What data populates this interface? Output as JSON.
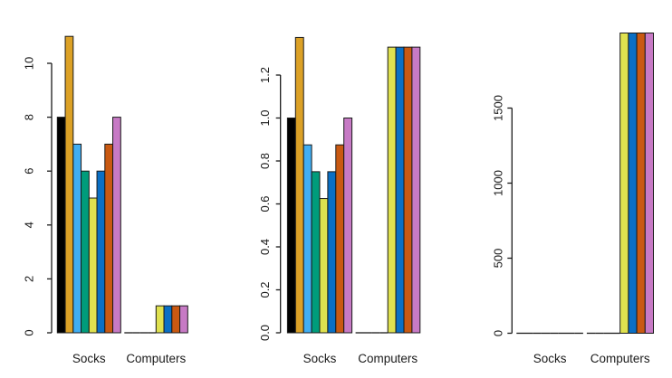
{
  "figure": {
    "background": "#ffffff",
    "categories": [
      "Socks",
      "Computers"
    ],
    "series_colors": [
      "#000000",
      "#DCA126",
      "#41AEF2",
      "#009C7B",
      "#DFE14F",
      "#0A6FC4",
      "#C95912",
      "#C77AC5"
    ]
  },
  "chart_data": [
    {
      "type": "bar",
      "title": "",
      "xlabel": "",
      "ylabel": "",
      "categories": [
        "Socks",
        "Computers"
      ],
      "series": [
        {
          "name": "black",
          "color": "#000000",
          "values": [
            8,
            0
          ]
        },
        {
          "name": "orange",
          "color": "#DCA126",
          "values": [
            11,
            0
          ]
        },
        {
          "name": "sky-blue",
          "color": "#41AEF2",
          "values": [
            7,
            0
          ]
        },
        {
          "name": "bluish-green",
          "color": "#009C7B",
          "values": [
            6,
            0
          ]
        },
        {
          "name": "yellow",
          "color": "#DFE14F",
          "values": [
            5,
            1
          ]
        },
        {
          "name": "blue",
          "color": "#0A6FC4",
          "values": [
            6,
            1
          ]
        },
        {
          "name": "vermillion",
          "color": "#C95912",
          "values": [
            7,
            1
          ]
        },
        {
          "name": "orchid",
          "color": "#C77AC5",
          "values": [
            8,
            1
          ]
        }
      ],
      "yticks": [
        0,
        2,
        4,
        6,
        8,
        10
      ],
      "ytick_labels": [
        "0",
        "2",
        "4",
        "6",
        "8",
        "10"
      ],
      "ylim": [
        0,
        11
      ],
      "grid": false,
      "legend": "none"
    },
    {
      "type": "bar",
      "title": "",
      "xlabel": "",
      "ylabel": "",
      "categories": [
        "Socks",
        "Computers"
      ],
      "series": [
        {
          "name": "black",
          "color": "#000000",
          "values": [
            1.0,
            0
          ]
        },
        {
          "name": "orange",
          "color": "#DCA126",
          "values": [
            1.375,
            0
          ]
        },
        {
          "name": "sky-blue",
          "color": "#41AEF2",
          "values": [
            0.875,
            0
          ]
        },
        {
          "name": "bluish-green",
          "color": "#009C7B",
          "values": [
            0.75,
            0
          ]
        },
        {
          "name": "yellow",
          "color": "#DFE14F",
          "values": [
            0.625,
            1.33
          ]
        },
        {
          "name": "blue",
          "color": "#0A6FC4",
          "values": [
            0.75,
            1.33
          ]
        },
        {
          "name": "vermillion",
          "color": "#C95912",
          "values": [
            0.875,
            1.33
          ]
        },
        {
          "name": "orchid",
          "color": "#C77AC5",
          "values": [
            1.0,
            1.33
          ]
        }
      ],
      "yticks": [
        0,
        0.2,
        0.4,
        0.6,
        0.8,
        1.0,
        1.2
      ],
      "ytick_labels": [
        "0.0",
        "0.2",
        "0.4",
        "0.6",
        "0.8",
        "1.0",
        "1.2"
      ],
      "ylim": [
        0,
        1.4
      ],
      "grid": false,
      "legend": "none"
    },
    {
      "type": "bar",
      "title": "",
      "xlabel": "",
      "ylabel": "",
      "categories": [
        "Socks",
        "Computers"
      ],
      "series": [
        {
          "name": "black",
          "color": "#000000",
          "values": [
            0,
            0
          ]
        },
        {
          "name": "orange",
          "color": "#DCA126",
          "values": [
            0,
            0
          ]
        },
        {
          "name": "sky-blue",
          "color": "#41AEF2",
          "values": [
            0,
            0
          ]
        },
        {
          "name": "bluish-green",
          "color": "#009C7B",
          "values": [
            0,
            0
          ]
        },
        {
          "name": "yellow",
          "color": "#DFE14F",
          "values": [
            0,
            2000
          ]
        },
        {
          "name": "blue",
          "color": "#0A6FC4",
          "values": [
            0,
            2000
          ]
        },
        {
          "name": "vermillion",
          "color": "#C95912",
          "values": [
            0,
            2000
          ]
        },
        {
          "name": "orchid",
          "color": "#C77AC5",
          "values": [
            0,
            2000
          ]
        }
      ],
      "yticks": [
        0,
        500,
        1000,
        1500
      ],
      "ytick_labels": [
        "0",
        "500",
        "1000",
        "1500"
      ],
      "ylim": [
        0,
        2000
      ],
      "grid": false,
      "legend": "none"
    }
  ]
}
